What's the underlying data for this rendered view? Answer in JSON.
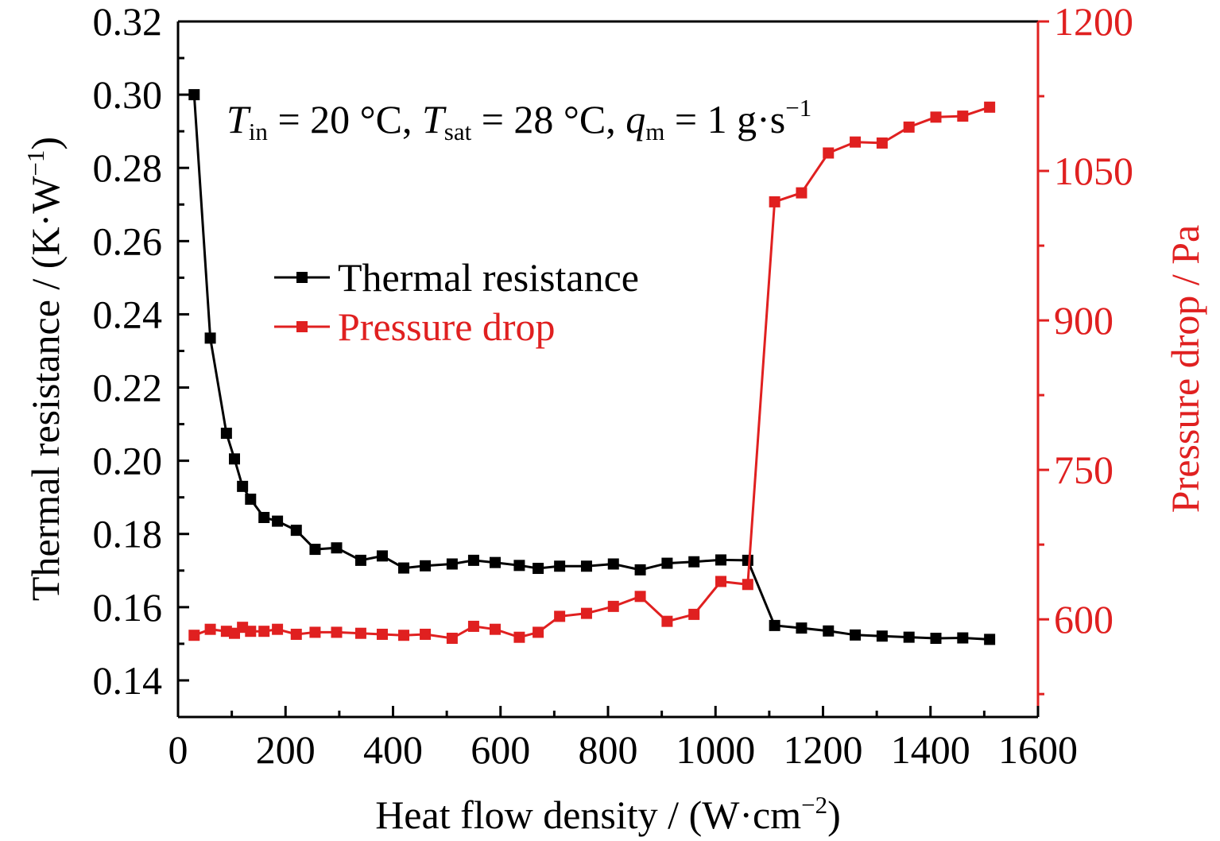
{
  "chart_data": {
    "type": "line",
    "annotation": {
      "T_in": "T",
      "T_in_sub": "in",
      "T_in_val": " = 20 °C, ",
      "T_sat": "T",
      "T_sat_sub": "sat",
      "T_sat_val": " = 28 °C, ",
      "q_m": "q",
      "q_m_sub": "m",
      "q_m_val": " = 1 g·s",
      "q_m_sup": "−1"
    },
    "xaxis": {
      "label": "Heat flow density / (W·cm",
      "label_sup": "−2",
      "label_end": ")",
      "range": [
        0,
        1600
      ],
      "ticks": [
        "0",
        "200",
        "400",
        "600",
        "800",
        "1000",
        "1200",
        "1400",
        "1600"
      ]
    },
    "yaxis_left": {
      "label": "Thermal resistance / (K·W",
      "label_sup": "−1",
      "label_end": ")",
      "range": [
        0.13,
        0.32
      ],
      "ticks": [
        "0.14",
        "0.16",
        "0.18",
        "0.20",
        "0.22",
        "0.24",
        "0.26",
        "0.28",
        "0.30",
        "0.32"
      ],
      "color": "#000000"
    },
    "yaxis_right": {
      "label": "Pressure drop / Pa",
      "range": [
        502,
        1200
      ],
      "ticks": [
        "600",
        "750",
        "900",
        "1050",
        "1200"
      ],
      "color": "#e02020"
    },
    "legend": {
      "position": "upper-middle",
      "items": [
        "Thermal resistance",
        "Pressure drop"
      ]
    },
    "series": [
      {
        "name": "Thermal resistance",
        "axis": "left",
        "color": "#000000",
        "points": [
          [
            30,
            0.3
          ],
          [
            60,
            0.2335
          ],
          [
            90,
            0.2075
          ],
          [
            105,
            0.2005
          ],
          [
            120,
            0.193
          ],
          [
            135,
            0.1895
          ],
          [
            160,
            0.1845
          ],
          [
            185,
            0.1835
          ],
          [
            220,
            0.181
          ],
          [
            255,
            0.1758
          ],
          [
            295,
            0.1762
          ],
          [
            340,
            0.1728
          ],
          [
            380,
            0.174
          ],
          [
            420,
            0.1707
          ],
          [
            460,
            0.1713
          ],
          [
            510,
            0.1718
          ],
          [
            550,
            0.1728
          ],
          [
            590,
            0.1722
          ],
          [
            635,
            0.1714
          ],
          [
            670,
            0.1706
          ],
          [
            710,
            0.1712
          ],
          [
            760,
            0.1712
          ],
          [
            810,
            0.1718
          ],
          [
            860,
            0.1702
          ],
          [
            910,
            0.172
          ],
          [
            960,
            0.1724
          ],
          [
            1010,
            0.1729
          ],
          [
            1060,
            0.1728
          ],
          [
            1110,
            0.155
          ],
          [
            1160,
            0.1543
          ],
          [
            1210,
            0.1535
          ],
          [
            1260,
            0.1524
          ],
          [
            1310,
            0.1521
          ],
          [
            1360,
            0.1518
          ],
          [
            1410,
            0.1515
          ],
          [
            1460,
            0.1516
          ],
          [
            1510,
            0.1512
          ]
        ]
      },
      {
        "name": "Pressure drop",
        "axis": "right",
        "color": "#e02020",
        "points": [
          [
            30,
            584
          ],
          [
            60,
            590
          ],
          [
            90,
            588
          ],
          [
            105,
            586
          ],
          [
            120,
            592
          ],
          [
            135,
            588
          ],
          [
            160,
            588
          ],
          [
            185,
            590
          ],
          [
            220,
            585
          ],
          [
            255,
            587
          ],
          [
            295,
            587
          ],
          [
            340,
            586
          ],
          [
            380,
            585
          ],
          [
            420,
            584
          ],
          [
            460,
            585
          ],
          [
            510,
            581
          ],
          [
            550,
            593
          ],
          [
            590,
            590
          ],
          [
            635,
            582
          ],
          [
            670,
            587
          ],
          [
            710,
            603
          ],
          [
            760,
            606
          ],
          [
            810,
            613
          ],
          [
            860,
            623
          ],
          [
            910,
            598
          ],
          [
            960,
            605
          ],
          [
            1010,
            638
          ],
          [
            1060,
            635
          ],
          [
            1110,
            1019
          ],
          [
            1160,
            1028
          ],
          [
            1210,
            1068
          ],
          [
            1260,
            1079
          ],
          [
            1310,
            1078
          ],
          [
            1360,
            1094
          ],
          [
            1410,
            1104
          ],
          [
            1460,
            1105
          ],
          [
            1510,
            1114
          ]
        ]
      }
    ]
  }
}
